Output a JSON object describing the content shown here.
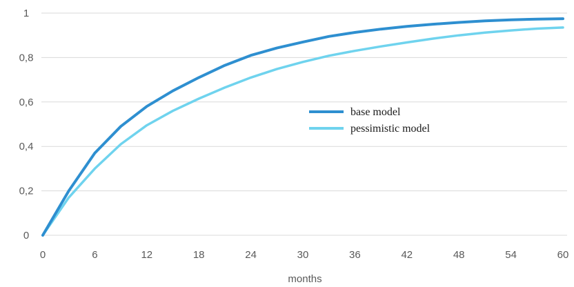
{
  "chart_data": {
    "type": "line",
    "title": "",
    "xlabel": "months",
    "ylabel": "",
    "xlim": [
      0,
      60
    ],
    "ylim": [
      0,
      1
    ],
    "x_ticks": [
      0,
      6,
      12,
      18,
      24,
      30,
      36,
      42,
      48,
      54,
      60
    ],
    "y_ticks": [
      0,
      0.2,
      0.4,
      0.6,
      0.8,
      1
    ],
    "y_tick_labels": [
      "0",
      "0,2",
      "0,4",
      "0,6",
      "0,8",
      "1"
    ],
    "x_tick_labels": [
      "0",
      "6",
      "12",
      "18",
      "24",
      "30",
      "36",
      "42",
      "48",
      "54",
      "60"
    ],
    "grid": "horizontal",
    "legend_position": "middle-right",
    "x": [
      0,
      3,
      6,
      9,
      12,
      15,
      18,
      21,
      24,
      27,
      30,
      33,
      36,
      39,
      42,
      45,
      48,
      51,
      54,
      57,
      60
    ],
    "series": [
      {
        "name": "base model",
        "color": "#2e8fd0",
        "values": [
          0,
          0.2,
          0.37,
          0.49,
          0.58,
          0.65,
          0.71,
          0.765,
          0.81,
          0.843,
          0.87,
          0.895,
          0.913,
          0.928,
          0.94,
          0.95,
          0.958,
          0.965,
          0.97,
          0.973,
          0.975
        ]
      },
      {
        "name": "pessimistic model",
        "color": "#6fd3ee",
        "values": [
          0,
          0.17,
          0.3,
          0.41,
          0.495,
          0.56,
          0.615,
          0.665,
          0.71,
          0.748,
          0.78,
          0.808,
          0.83,
          0.85,
          0.868,
          0.885,
          0.9,
          0.912,
          0.922,
          0.93,
          0.935
        ]
      }
    ]
  }
}
